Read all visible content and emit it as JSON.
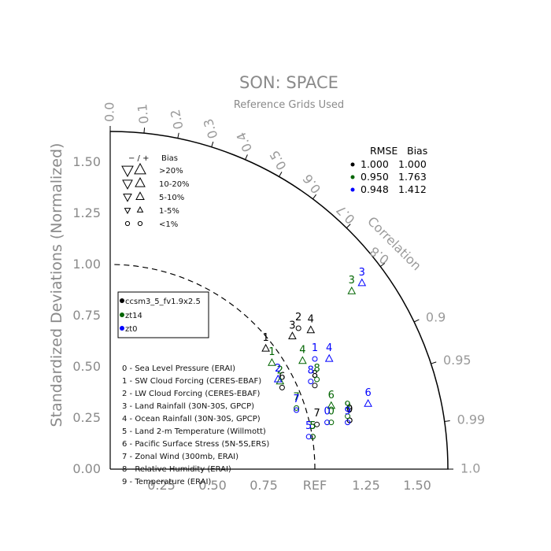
{
  "chart_data": {
    "type": "scatter",
    "subtype": "taylor-diagram",
    "title": "SON: SPACE",
    "subtitle": "Reference Grids Used",
    "ylabel": "Standardized Deviations (Normalized)",
    "angle_label": "Correlation",
    "ref_label": "REF",
    "std_range": [
      0,
      1.65
    ],
    "x_ticks": [
      "0.25",
      "0.50",
      "0.75",
      "1.25",
      "1.50"
    ],
    "y_ticks": [
      "0.00",
      "0.25",
      "0.50",
      "0.75",
      "1.00",
      "1.25",
      "1.50"
    ],
    "correlation_ticks": [
      "0.0",
      "0.1",
      "0.2",
      "0.3",
      "0.4",
      "0.5",
      "0.6",
      "0.7",
      "0.8",
      "0.9",
      "0.95",
      "0.99",
      "1.0"
    ],
    "bias_legend": {
      "header_symbols": "− / +",
      "header_label": "Bias",
      "rows": [
        ">20%",
        "10-20%",
        "5-10%",
        "1-5%",
        "<1%"
      ]
    },
    "stats": {
      "header_rmse": "RMSE",
      "header_bias": "Bias",
      "rows": [
        {
          "color": "#000000",
          "rmse": "1.000",
          "bias": "1.000"
        },
        {
          "color": "#006400",
          "rmse": "0.950",
          "bias": "1.763"
        },
        {
          "color": "#0000ff",
          "rmse": "0.948",
          "bias": "1.412"
        }
      ]
    },
    "series": [
      {
        "name": "ccsm3_5_fv1.9x2.5",
        "color": "#000000"
      },
      {
        "name": "zt14",
        "color": "#006400"
      },
      {
        "name": "zt0",
        "color": "#0000ff"
      }
    ],
    "variables": [
      "0 - Sea Level Pressure (ERAI)",
      "1 - SW Cloud Forcing (CERES-EBAF)",
      "2 - LW Cloud Forcing (CERES-EBAF)",
      "3 - Land Rainfall (30N-30S, GPCP)",
      "4 - Ocean Rainfall (30N-30S, GPCP)",
      "5 - Land 2-m Temperature (Willmott)",
      "6 - Pacific Surface Stress (5N-5S,ERS)",
      "7 - Zonal Wind (300mb, ERAI)",
      "8 - Relative Humidity (ERAI)",
      "9 - Temperature (ERAI)"
    ],
    "points": [
      {
        "series": 0,
        "label": "0",
        "x": 1.17,
        "y": 0.25,
        "marker": "circle"
      },
      {
        "series": 0,
        "label": "1",
        "x": 0.76,
        "y": 0.6,
        "marker": "up"
      },
      {
        "series": 0,
        "label": "2",
        "x": 0.92,
        "y": 0.7,
        "marker": "circle"
      },
      {
        "series": 0,
        "label": "3",
        "x": 0.89,
        "y": 0.66,
        "marker": "up"
      },
      {
        "series": 0,
        "label": "4",
        "x": 0.98,
        "y": 0.69,
        "marker": "up"
      },
      {
        "series": 0,
        "label": "5",
        "x": 0.99,
        "y": 0.17,
        "marker": "circle"
      },
      {
        "series": 0,
        "label": "6",
        "x": 0.84,
        "y": 0.41,
        "marker": "circle"
      },
      {
        "series": 0,
        "label": "7",
        "x": 1.01,
        "y": 0.23,
        "marker": "circle"
      },
      {
        "series": 0,
        "label": "8",
        "x": 1.0,
        "y": 0.42,
        "marker": "circle"
      },
      {
        "series": 0,
        "label": "9",
        "x": 1.17,
        "y": 0.25,
        "marker": "circle"
      },
      {
        "series": 1,
        "label": "0",
        "x": 1.08,
        "y": 0.24,
        "marker": "circle"
      },
      {
        "series": 1,
        "label": "1",
        "x": 0.79,
        "y": 0.53,
        "marker": "up"
      },
      {
        "series": 1,
        "label": "2",
        "x": 0.83,
        "y": 0.44,
        "marker": "up"
      },
      {
        "series": 1,
        "label": "3",
        "x": 1.18,
        "y": 0.88,
        "marker": "up"
      },
      {
        "series": 1,
        "label": "4",
        "x": 0.94,
        "y": 0.54,
        "marker": "up"
      },
      {
        "series": 1,
        "label": "5",
        "x": 0.99,
        "y": 0.17,
        "marker": "circle"
      },
      {
        "series": 1,
        "label": "6",
        "x": 1.08,
        "y": 0.32,
        "marker": "up"
      },
      {
        "series": 1,
        "label": "7",
        "x": 0.91,
        "y": 0.31,
        "marker": "circle"
      },
      {
        "series": 1,
        "label": "8",
        "x": 1.01,
        "y": 0.45,
        "marker": "circle"
      },
      {
        "series": 1,
        "label": "9",
        "x": 1.16,
        "y": 0.27,
        "marker": "circle"
      },
      {
        "series": 2,
        "label": "0",
        "x": 1.06,
        "y": 0.24,
        "marker": "circle"
      },
      {
        "series": 2,
        "label": "1",
        "x": 1.0,
        "y": 0.55,
        "marker": "circle"
      },
      {
        "series": 2,
        "label": "2",
        "x": 0.82,
        "y": 0.45,
        "marker": "up"
      },
      {
        "series": 2,
        "label": "3",
        "x": 1.23,
        "y": 0.92,
        "marker": "up"
      },
      {
        "series": 2,
        "label": "4",
        "x": 1.07,
        "y": 0.55,
        "marker": "up"
      },
      {
        "series": 2,
        "label": "5",
        "x": 0.97,
        "y": 0.17,
        "marker": "circle"
      },
      {
        "series": 2,
        "label": "6",
        "x": 1.26,
        "y": 0.33,
        "marker": "up"
      },
      {
        "series": 2,
        "label": "7",
        "x": 0.91,
        "y": 0.3,
        "marker": "circle"
      },
      {
        "series": 2,
        "label": "8",
        "x": 0.98,
        "y": 0.44,
        "marker": "circle"
      },
      {
        "series": 2,
        "label": "9",
        "x": 1.16,
        "y": 0.24,
        "marker": "circle"
      }
    ]
  }
}
